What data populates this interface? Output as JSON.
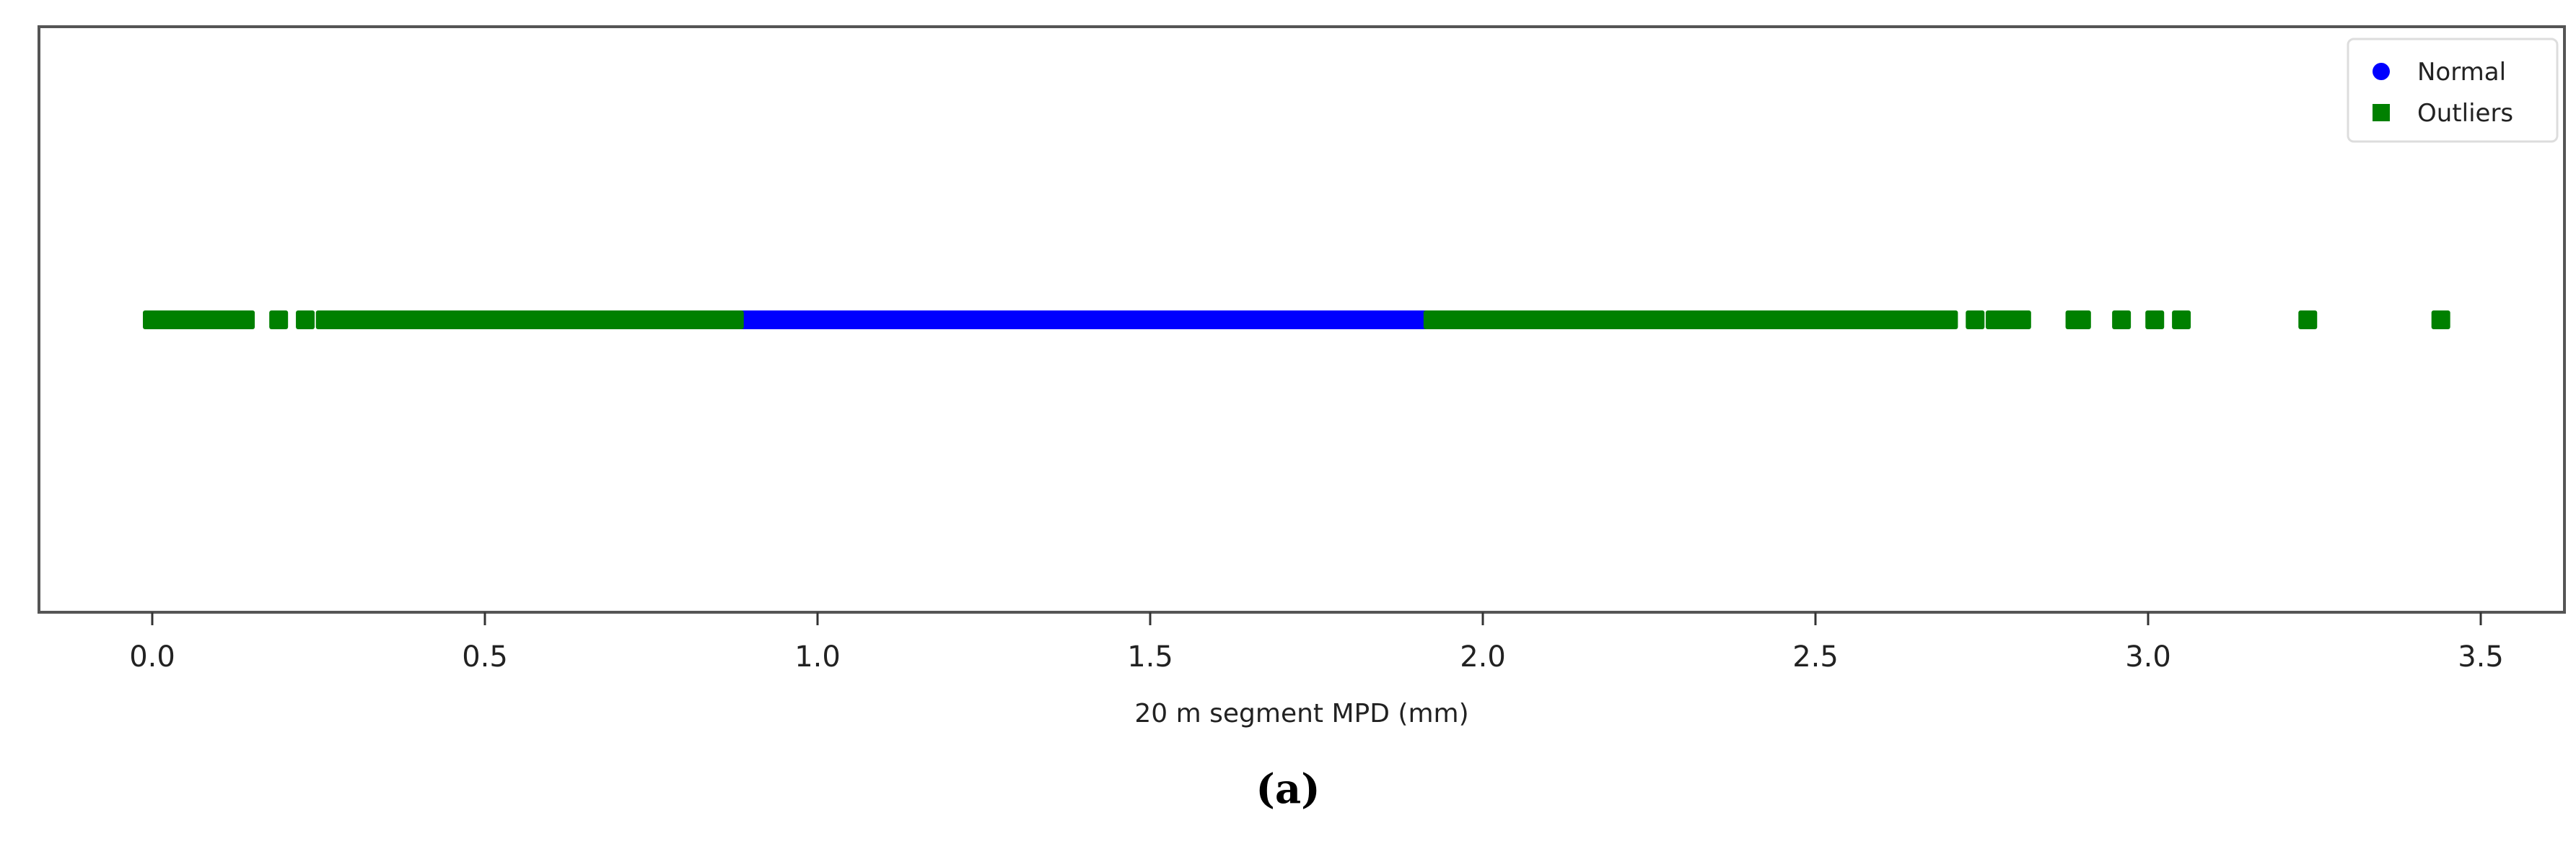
{
  "chart_data": {
    "type": "scatter",
    "title": "",
    "xlabel": "20 m segment MPD (mm)",
    "ylabel": "",
    "xlim": [
      -0.12,
      3.6
    ],
    "xticks": [
      0.0,
      0.5,
      1.0,
      1.5,
      2.0,
      2.5,
      3.0,
      3.5
    ],
    "xtick_labels": [
      "0.0",
      "0.5",
      "1.0",
      "1.5",
      "2.0",
      "2.5",
      "3.0",
      "3.5"
    ],
    "grid": false,
    "legend_position": "upper right",
    "caption": "(a)",
    "series": [
      {
        "name": "Normal",
        "marker": "circle",
        "color": "#0000ff",
        "dense_ranges": [
          [
            0.875,
            1.925
          ]
        ],
        "points": []
      },
      {
        "name": "Outliers",
        "marker": "square",
        "color": "#008000",
        "dense_ranges": [
          [
            0.0,
            0.14
          ],
          [
            0.26,
            0.875
          ],
          [
            1.925,
            2.7
          ]
        ],
        "points": [
          0.19,
          0.23,
          2.74,
          2.77,
          2.79,
          2.81,
          2.89,
          2.9,
          2.96,
          3.01,
          3.05,
          3.24,
          3.44
        ]
      }
    ]
  },
  "legend": {
    "items": [
      {
        "label": "Normal",
        "color": "#0000ff",
        "marker": "circle"
      },
      {
        "label": "Outliers",
        "color": "#008000",
        "marker": "square"
      }
    ]
  },
  "caption": "(a)"
}
